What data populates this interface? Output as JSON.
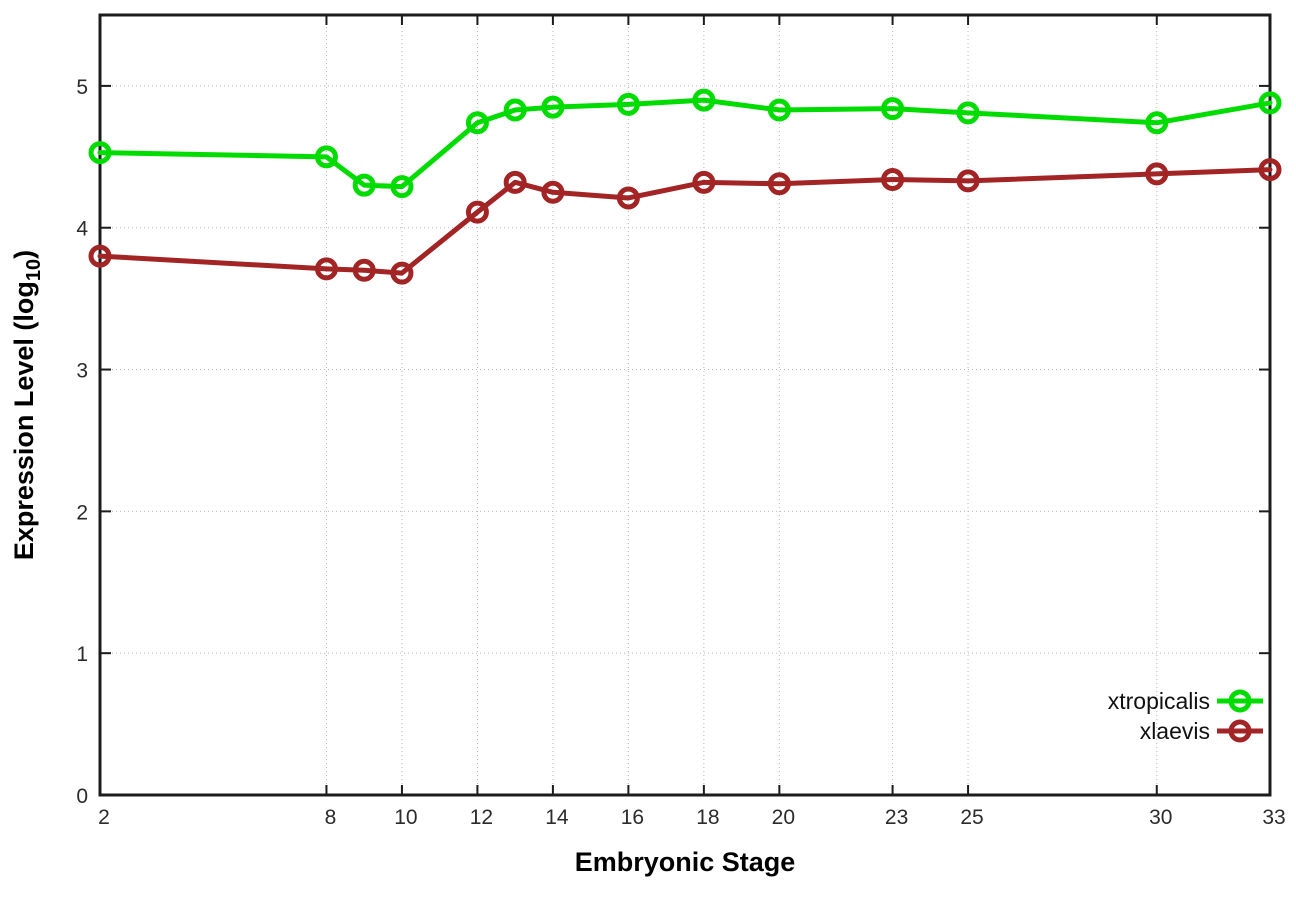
{
  "figure": {
    "background": "#ffffff",
    "border_color": "#1c1c1c",
    "grid_color": "#b9b9b9",
    "tick_color": "#1c1c1c",
    "tick_label_color": "#2b2b2b",
    "axis_label_color": "#000000"
  },
  "chart_data": {
    "type": "line",
    "title": "",
    "xlabel": "Embryonic Stage",
    "ylabel": {
      "pre": "Expression Level (log",
      "sub": "10",
      "post": ")"
    },
    "x": [
      2,
      8,
      9,
      10,
      12,
      13,
      14,
      16,
      18,
      20,
      23,
      25,
      30,
      33
    ],
    "x_tick_values": [
      2,
      8,
      10,
      12,
      14,
      16,
      18,
      20,
      23,
      25,
      30,
      33
    ],
    "x_tick_labels": [
      "2",
      "8",
      "10",
      "12",
      "14",
      "16",
      "18",
      "20",
      "23",
      "25",
      "30",
      "33"
    ],
    "y_tick_values": [
      0,
      1,
      2,
      3,
      4,
      5
    ],
    "y_tick_labels": [
      "0",
      "1",
      "2",
      "3",
      "4",
      "5"
    ],
    "xlim": [
      2,
      33
    ],
    "ylim": [
      0,
      5.5
    ],
    "grid": "dotted",
    "legend_position": "inside-bottom-right",
    "series": [
      {
        "name": "xtropicalis",
        "color": "#00dc00",
        "marker": "open-circle",
        "values": [
          4.53,
          4.5,
          4.3,
          4.29,
          4.74,
          4.83,
          4.85,
          4.87,
          4.9,
          4.83,
          4.84,
          4.81,
          4.74,
          4.88
        ]
      },
      {
        "name": "xlaevis",
        "color": "#a32424",
        "marker": "open-circle",
        "values": [
          3.8,
          3.71,
          3.7,
          3.68,
          4.11,
          4.32,
          4.25,
          4.21,
          4.32,
          4.31,
          4.34,
          4.33,
          4.38,
          4.41
        ]
      }
    ]
  }
}
